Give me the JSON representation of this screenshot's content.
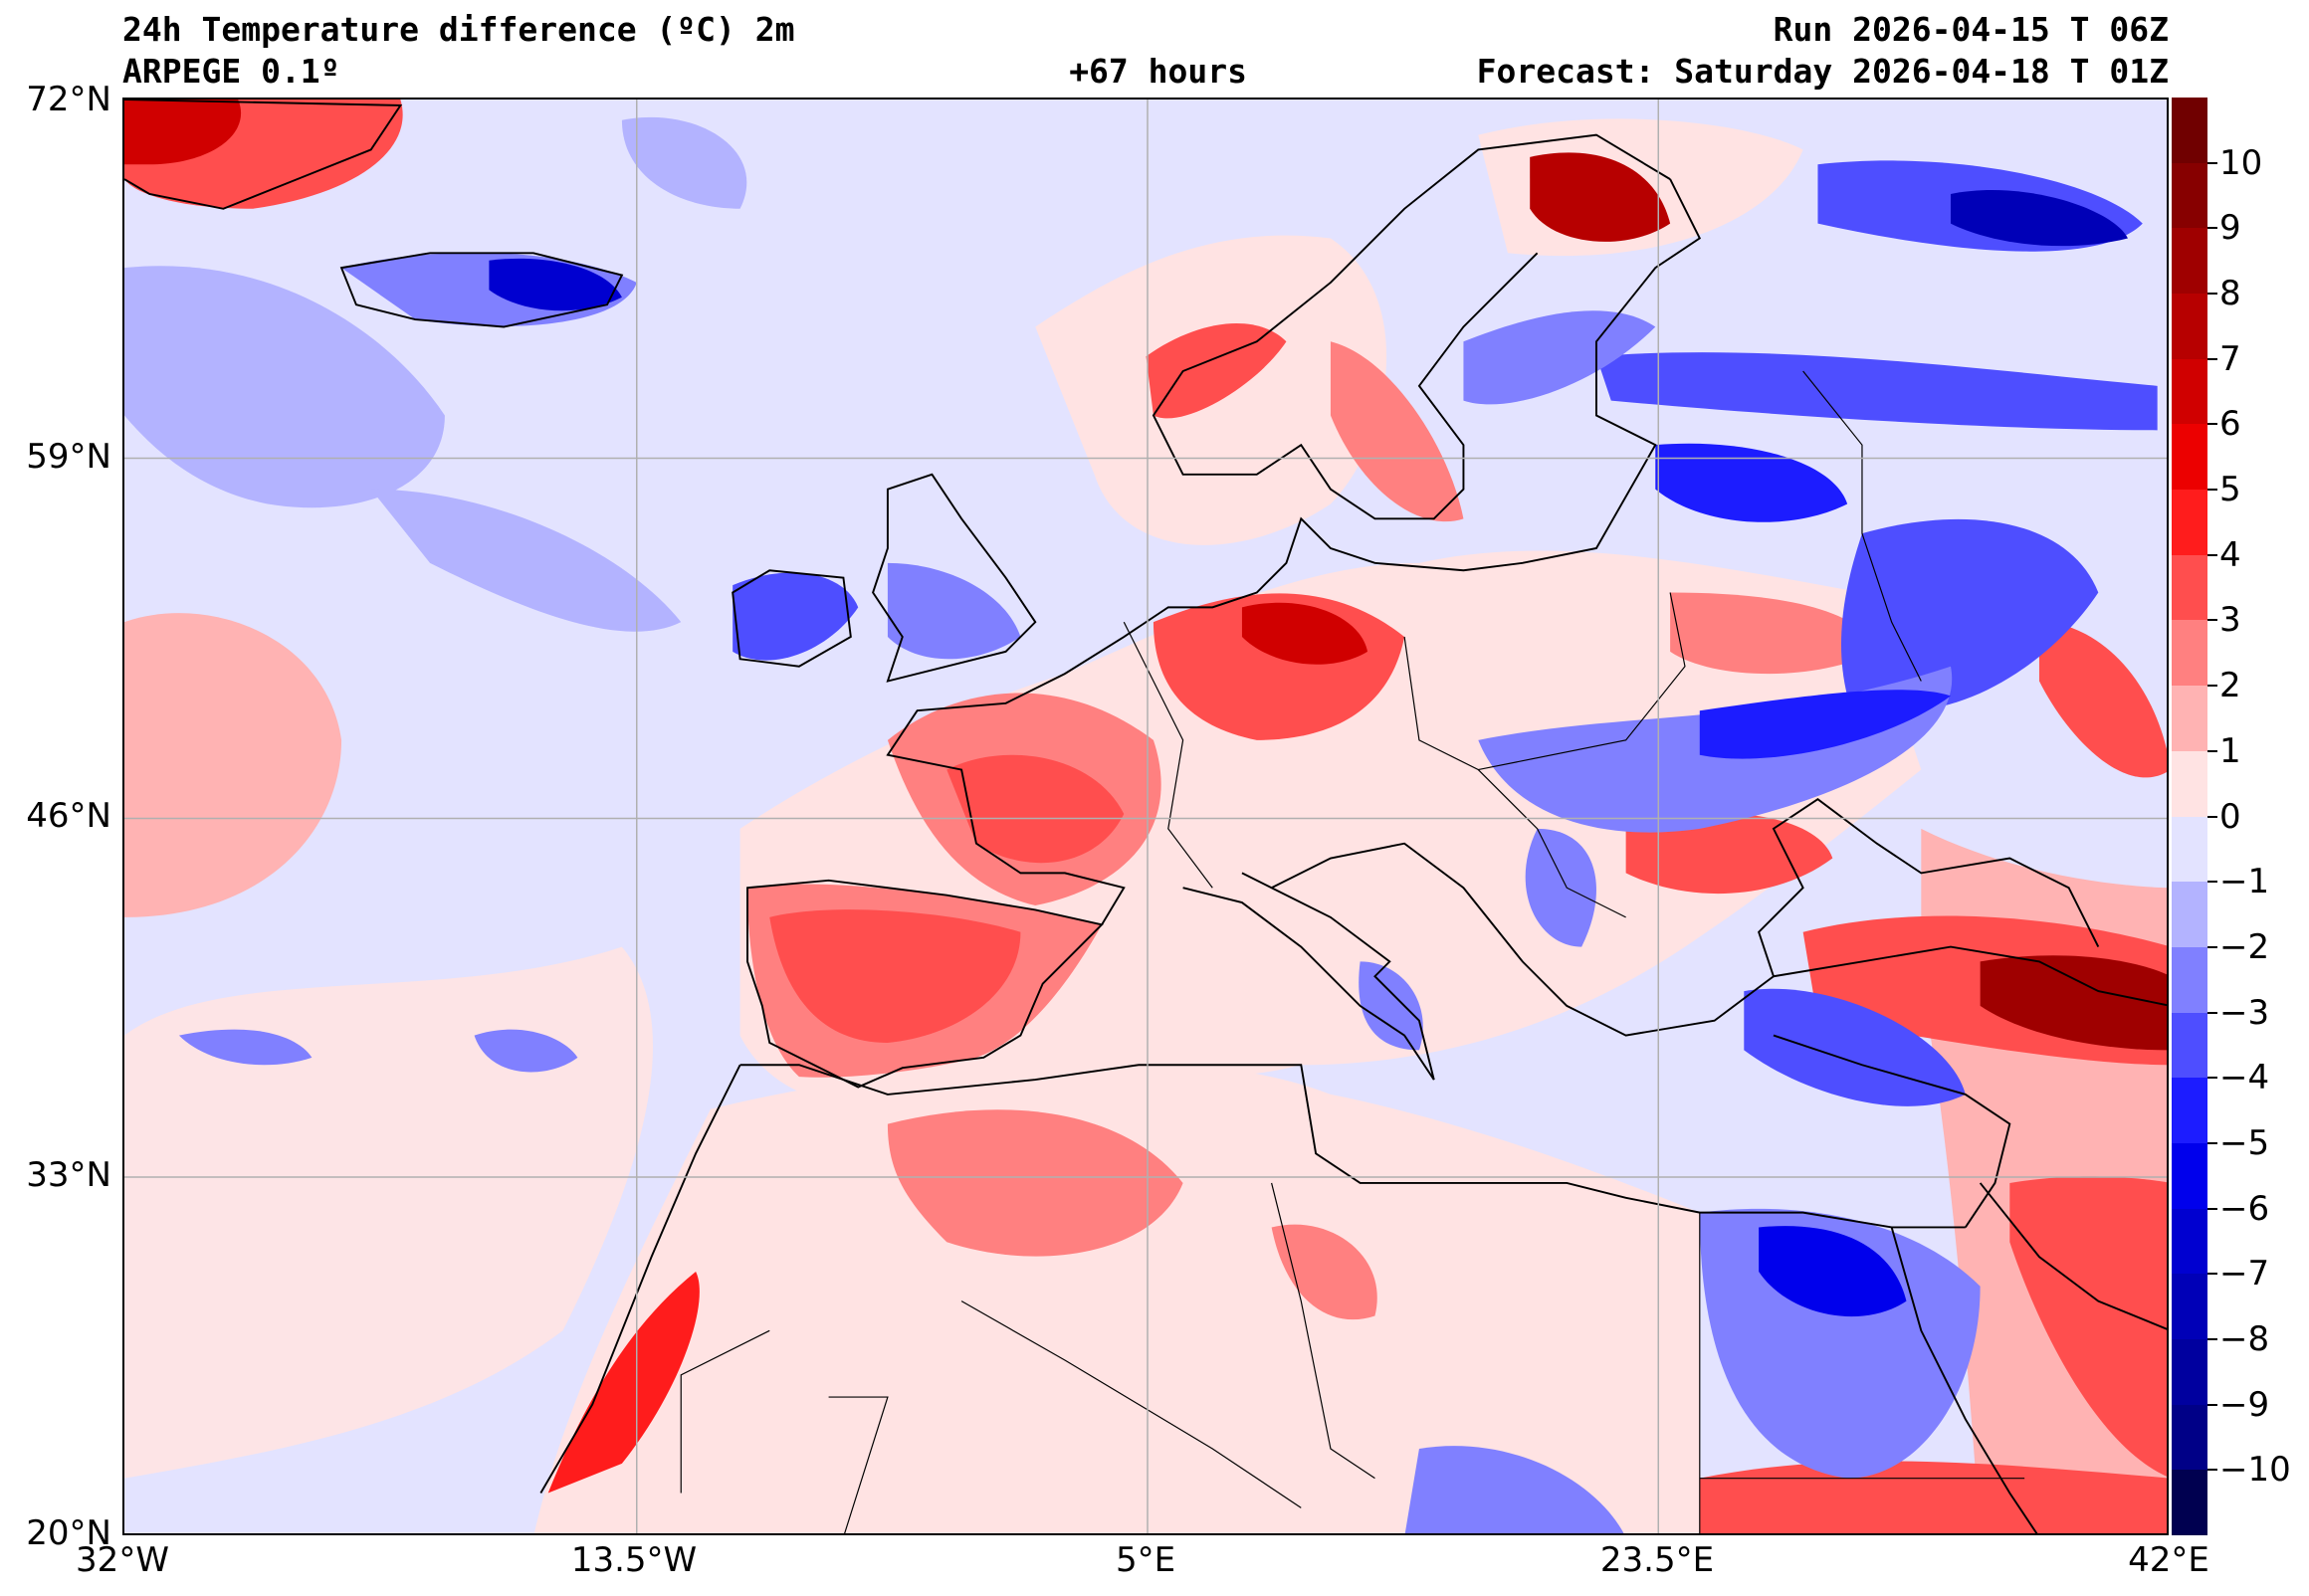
{
  "header": {
    "title": "24h Temperature difference (ºC) 2m",
    "model": "ARPEGE 0.1º",
    "lead_time": "+67 hours",
    "run": "Run 2026-04-15 T 06Z",
    "forecast": "Forecast: Saturday 2026-04-18 T 01Z"
  },
  "axes": {
    "lat_labels": [
      "72°N",
      "59°N",
      "46°N",
      "33°N",
      "20°N"
    ],
    "lon_labels": [
      "32°W",
      "13.5°W",
      "5°E",
      "23.5°E",
      "42°E"
    ]
  },
  "colorbar": {
    "levels": [
      11,
      10,
      9,
      8,
      7,
      6,
      5,
      4,
      3,
      2,
      1,
      0,
      -1,
      -2,
      -3,
      -4,
      -5,
      -6,
      -7,
      -8,
      -9,
      -10,
      -11
    ],
    "tick_labels": [
      "10",
      "9",
      "8",
      "7",
      "6",
      "5",
      "4",
      "3",
      "2",
      "1",
      "0",
      "−1",
      "−2",
      "−3",
      "−4",
      "−5",
      "−6",
      "−7",
      "−8",
      "−9",
      "−10"
    ],
    "colors": [
      "#700000",
      "#870000",
      "#9f0000",
      "#b70000",
      "#d00000",
      "#ec0000",
      "#ff1c1c",
      "#ff4e4e",
      "#ff8080",
      "#ffb3b3",
      "#ffe3e3",
      "#e3e3ff",
      "#b3b3ff",
      "#8080ff",
      "#4e4eff",
      "#1c1cff",
      "#0000ec",
      "#0000d0",
      "#0000b7",
      "#00009f",
      "#000087",
      "#000050"
    ]
  }
}
